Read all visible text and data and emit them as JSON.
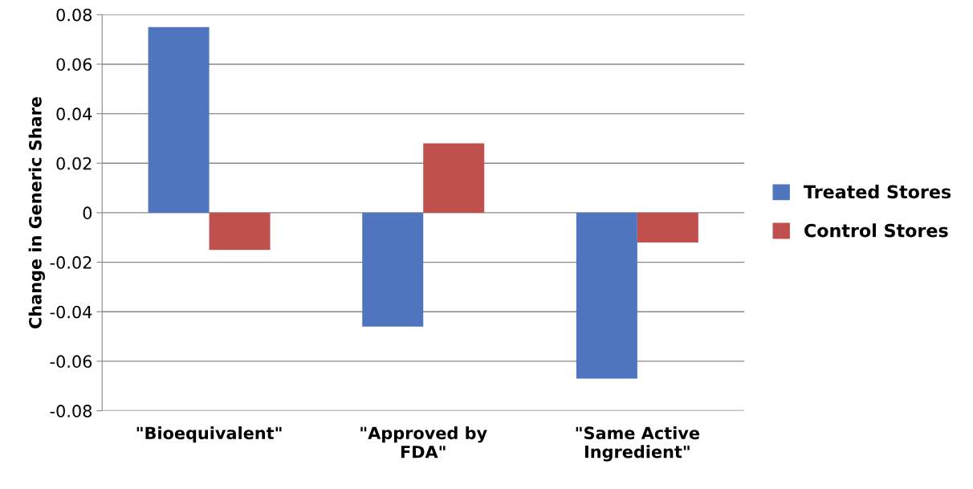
{
  "chart_data": {
    "type": "bar",
    "ylabel": "Change in Generic Share",
    "categories": [
      "\"Bioequivalent\"",
      "\"Approved by\nFDA\"",
      "\"Same Active\nIngredient\""
    ],
    "series": [
      {
        "name": "Treated Stores",
        "color": "#4f75be",
        "values": [
          0.075,
          -0.046,
          -0.067
        ]
      },
      {
        "name": "Control Stores",
        "color": "#c0504d",
        "values": [
          -0.015,
          0.028,
          -0.012
        ]
      }
    ],
    "ylim": [
      -0.08,
      0.08
    ],
    "yticks": [
      {
        "value": -0.08,
        "label": "-0.08"
      },
      {
        "value": -0.06,
        "label": "-0.06"
      },
      {
        "value": -0.04,
        "label": "-0.04"
      },
      {
        "value": -0.02,
        "label": "-0.02"
      },
      {
        "value": 0,
        "label": "0"
      },
      {
        "value": 0.02,
        "label": "0.02"
      },
      {
        "value": 0.04,
        "label": "0.04"
      },
      {
        "value": 0.06,
        "label": "0.06"
      },
      {
        "value": 0.08,
        "label": "0.08"
      }
    ],
    "grid": "y",
    "legend": "right"
  }
}
